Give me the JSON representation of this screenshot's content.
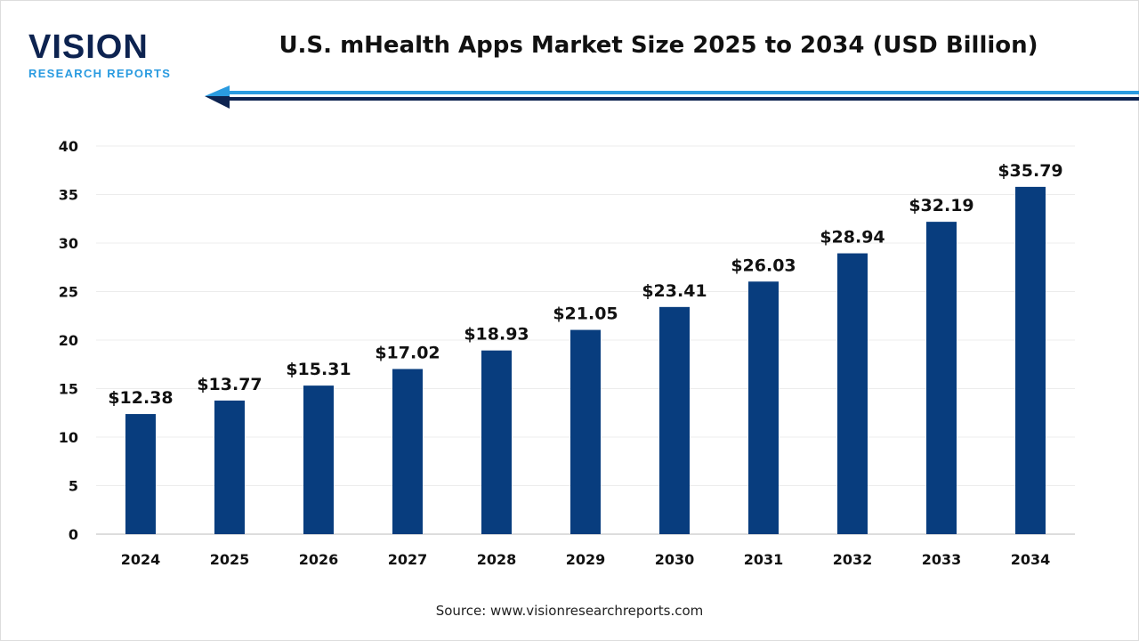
{
  "logo": {
    "word": "VISION",
    "sub": "RESEARCH REPORTS"
  },
  "title": "U.S. mHealth Apps Market Size 2025 to 2034 (USD Billion)",
  "source": "Source: www.visionresearchreports.com",
  "colors": {
    "bar": "#083d7e",
    "arrow_light": "#2a9be0",
    "arrow_dark": "#0d2350"
  },
  "chart_data": {
    "type": "bar",
    "title": "U.S. mHealth Apps Market Size 2025 to 2034 (USD Billion)",
    "categories": [
      "2024",
      "2025",
      "2026",
      "2027",
      "2028",
      "2029",
      "2030",
      "2031",
      "2032",
      "2033",
      "2034"
    ],
    "values": [
      12.38,
      13.77,
      15.31,
      17.02,
      18.93,
      21.05,
      23.41,
      26.03,
      28.94,
      32.19,
      35.79
    ],
    "data_labels": [
      "$12.38",
      "$13.77",
      "$15.31",
      "$17.02",
      "$18.93",
      "$21.05",
      "$23.41",
      "$26.03",
      "$28.94",
      "$32.19",
      "$35.79"
    ],
    "ylim": [
      0,
      40
    ],
    "yticks": [
      "0",
      "5",
      "10",
      "15",
      "20",
      "25",
      "30",
      "35",
      "40"
    ],
    "grid": true,
    "xlabel": "",
    "ylabel": ""
  }
}
